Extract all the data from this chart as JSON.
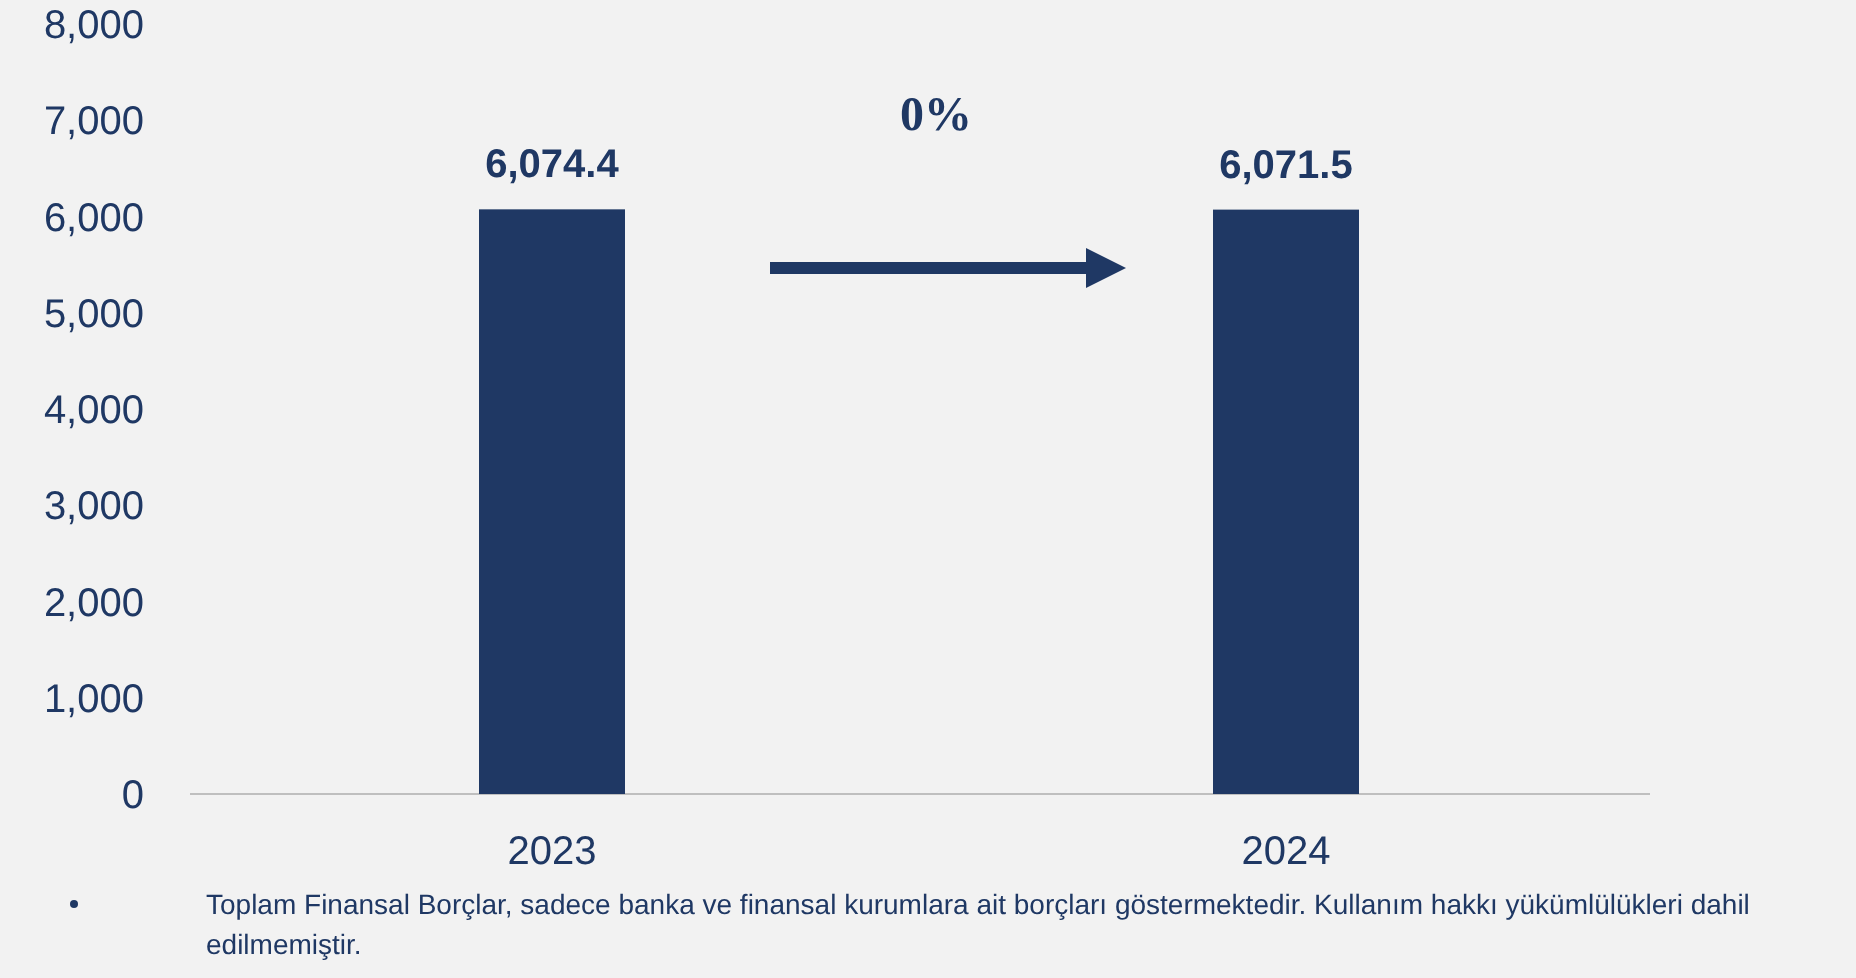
{
  "chart_data": {
    "type": "bar",
    "categories": [
      "2023",
      "2024"
    ],
    "values": [
      6074.4,
      6071.5
    ],
    "color": "#1f3864",
    "value_labels": [
      "6,074.4",
      "6,071.5"
    ],
    "ylim": [
      0,
      8000
    ],
    "yticks": [
      0,
      {
        "value": 1000,
        "label": "1,000"
      },
      {
        "value": 2000,
        "label": "2,000"
      },
      {
        "value": 3000,
        "label": "3,000"
      },
      {
        "value": 4000,
        "label": "4,000"
      },
      {
        "value": 5000,
        "label": "5,000"
      },
      {
        "value": 6000,
        "label": "6,000"
      },
      {
        "value": 7000,
        "label": "7,000"
      },
      {
        "value": 8000,
        "label": "8,000"
      }
    ],
    "grid": false,
    "annotations": [
      "0%",
      "Toplam Finansal Borçlar, sadece banka ve finansal kurumlara ait borçları göstermektedir. Kullanım hakkı yükümlülükleri dahil edilmemiştir."
    ]
  }
}
